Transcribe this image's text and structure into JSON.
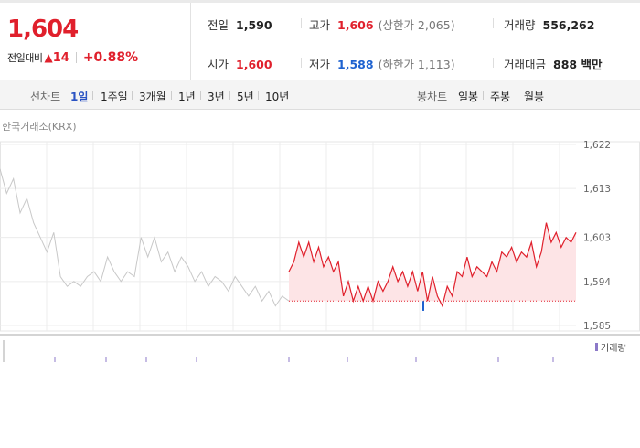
{
  "quote": {
    "price": "1,604",
    "change_label": "전일대비",
    "change_arrow": "▲",
    "change_amount": "14",
    "change_percent": "+0.88%"
  },
  "info": {
    "prev_close": {
      "label": "전일",
      "value": "1,590"
    },
    "open": {
      "label": "시가",
      "value": "1,600"
    },
    "high": {
      "label": "고가",
      "value": "1,606",
      "limit": "(상한가 2,065)"
    },
    "low": {
      "label": "저가",
      "value": "1,588",
      "limit": "(하한가 1,113)"
    },
    "volume": {
      "label": "거래량",
      "value": "556,262"
    },
    "turnover": {
      "label": "거래대금",
      "value": "888 백만"
    }
  },
  "tabs": {
    "line_label": "선차트",
    "line_items": [
      "1일",
      "1주일",
      "3개월",
      "1년",
      "3년",
      "5년",
      "10년"
    ],
    "active_index": 0,
    "candle_label": "봉차트",
    "candle_items": [
      "일봉",
      "주봉",
      "월봉"
    ]
  },
  "chart": {
    "source": "한국거래소(KRX)",
    "y_ticks": [
      "1,622",
      "1,613",
      "1,603",
      "1,594",
      "1,585"
    ],
    "volume_legend": "거래량",
    "colors": {
      "up": "#e0202c",
      "down": "#1e62d0",
      "prev": "#c8c8c8",
      "fill": "#fde4e6",
      "volume": "#8c79c8"
    }
  },
  "chart_data": {
    "type": "line",
    "ylim": [
      1585,
      1622
    ],
    "y_tick_values": [
      1622,
      1613,
      1603,
      1594,
      1585
    ],
    "baseline": 1590,
    "series": [
      {
        "values": [
          1617,
          1612,
          1615,
          1608,
          1611,
          1606,
          1603,
          1600,
          1604,
          1595,
          1593,
          1594,
          1593,
          1595,
          1596,
          1594,
          1599,
          1596,
          1594,
          1596,
          1595,
          1603,
          1599,
          1603,
          1598,
          1600,
          1596,
          1599,
          1597,
          1594,
          1596,
          1593,
          1595,
          1594,
          1592,
          1595,
          1593,
          1591,
          1593,
          1590,
          1592,
          1589,
          1591,
          1590
        ]
      },
      {
        "values": [
          1596,
          1598,
          1602,
          1599,
          1602,
          1598,
          1601,
          1597,
          1599,
          1596,
          1598,
          1591,
          1594,
          1590,
          1593,
          1590,
          1593,
          1590,
          1594,
          1592,
          1594,
          1597,
          1594,
          1596,
          1593,
          1596,
          1592,
          1596,
          1590,
          1595,
          1591,
          1589,
          1593,
          1591,
          1596,
          1595,
          1599,
          1595,
          1597,
          1596,
          1595,
          1598,
          1596,
          1600,
          1599,
          1601,
          1598,
          1600,
          1599,
          1602,
          1597,
          1600,
          1606,
          1602,
          1604,
          1601,
          1603,
          1602,
          1604
        ]
      }
    ]
  }
}
